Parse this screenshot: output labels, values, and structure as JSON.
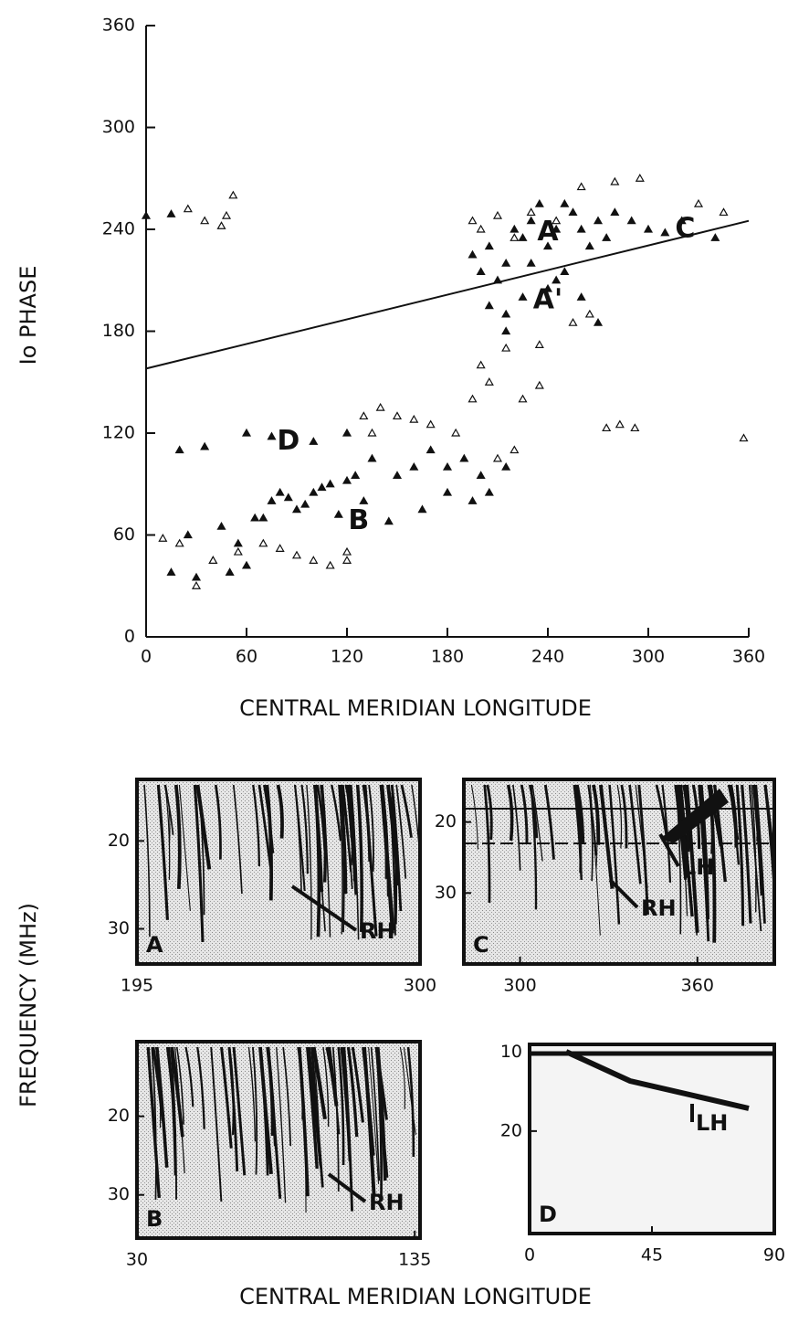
{
  "chart_data": [
    {
      "type": "scatter",
      "x_label": "CENTRAL MERIDIAN LONGITUDE",
      "y_label": "Io PHASE",
      "xlim": [
        0,
        360
      ],
      "xticks": [
        0,
        60,
        120,
        180,
        240,
        300,
        360
      ],
      "ylim": [
        0,
        360
      ],
      "yticks": [
        0,
        60,
        120,
        180,
        240,
        300,
        360
      ],
      "series": [
        {
          "color": "#111111",
          "filled": true,
          "x": [
            0,
            15,
            195,
            200,
            205,
            210,
            215,
            220,
            225,
            230,
            235,
            240,
            245,
            250,
            255,
            260,
            265,
            270,
            275,
            280,
            290,
            300,
            310,
            320,
            340,
            205,
            215,
            225,
            240,
            250,
            260,
            270,
            215,
            230,
            245,
            15,
            30,
            40,
            50,
            60,
            70,
            75,
            80,
            90,
            100,
            110,
            120,
            125,
            135,
            150,
            160,
            170,
            180,
            190,
            200,
            205,
            215,
            25,
            45,
            55,
            65,
            85,
            95,
            105,
            115,
            130,
            145,
            165,
            180,
            195,
            20,
            35,
            60,
            75,
            100,
            120
          ],
          "values": [
            248,
            249,
            225,
            215,
            230,
            210,
            220,
            240,
            235,
            245,
            255,
            230,
            240,
            255,
            250,
            240,
            230,
            245,
            235,
            250,
            245,
            240,
            238,
            245,
            235,
            195,
            190,
            200,
            205,
            215,
            200,
            185,
            180,
            220,
            210,
            38,
            35,
            45,
            38,
            42,
            70,
            80,
            85,
            75,
            85,
            90,
            92,
            95,
            105,
            95,
            100,
            110,
            100,
            105,
            95,
            85,
            100,
            60,
            65,
            55,
            70,
            82,
            78,
            88,
            72,
            80,
            68,
            75,
            85,
            80,
            110,
            112,
            120,
            118,
            115,
            120
          ]
        },
        {
          "color": "#111111",
          "filled": false,
          "x": [
            25,
            35,
            45,
            48,
            52,
            195,
            200,
            210,
            220,
            230,
            245,
            260,
            280,
            295,
            330,
            345,
            215,
            235,
            255,
            265,
            200,
            225,
            235,
            10,
            20,
            30,
            40,
            55,
            70,
            80,
            90,
            100,
            110,
            120,
            130,
            140,
            150,
            160,
            170,
            185,
            195,
            205,
            210,
            220,
            275,
            283,
            292,
            357,
            120,
            135
          ],
          "values": [
            252,
            245,
            242,
            248,
            260,
            245,
            240,
            248,
            235,
            250,
            245,
            265,
            268,
            270,
            255,
            250,
            170,
            172,
            185,
            190,
            160,
            140,
            148,
            58,
            55,
            30,
            45,
            50,
            55,
            52,
            48,
            45,
            42,
            50,
            130,
            135,
            130,
            128,
            125,
            120,
            140,
            150,
            105,
            110,
            123,
            125,
            123,
            117,
            45,
            120
          ]
        }
      ],
      "fit_line": {
        "x": [
          0,
          360
        ],
        "values": [
          158,
          245
        ]
      },
      "annotations": [
        "A",
        "A'",
        "B",
        "C",
        "D"
      ]
    },
    {
      "type": "spectrogram",
      "label": "A",
      "xlim": [
        195,
        300
      ],
      "xticks": [
        195,
        300
      ],
      "ylim": [
        34,
        13
      ],
      "yticks": [
        20,
        30
      ],
      "annotations": [
        "RH"
      ]
    },
    {
      "type": "spectrogram",
      "label": "C",
      "xlim": [
        281,
        386
      ],
      "xticks": [
        300,
        360
      ],
      "ylim": [
        40,
        14
      ],
      "yticks": [
        20,
        30
      ],
      "annotations": [
        "LH",
        "RH"
      ]
    },
    {
      "type": "spectrogram",
      "label": "B",
      "xlim": [
        30,
        137
      ],
      "xticks": [
        30,
        135
      ],
      "ylim": [
        35.5,
        10.5
      ],
      "yticks": [
        20,
        30
      ],
      "annotations": [
        "RH"
      ]
    },
    {
      "type": "spectrogram",
      "label": "D",
      "xlim": [
        0,
        90
      ],
      "xticks": [
        0,
        45,
        90
      ],
      "ylim": [
        33,
        9
      ],
      "yticks": [
        10,
        20
      ],
      "annotations": [
        "LH"
      ]
    }
  ],
  "figure": {
    "y_label": "FREQUENCY (MHz)",
    "x_label": "CENTRAL MERIDIAN LONGITUDE"
  }
}
